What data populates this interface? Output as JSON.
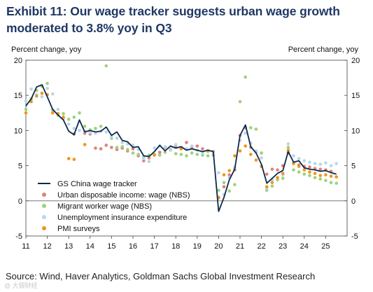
{
  "title_line1": "Exhibit 11: Our wage tracker suggests urban wage growth",
  "title_line2": "moderated to 3.8% yoy in Q3",
  "source": "Source: Wind, Haver Analytics, Goldman Sachs Global Investment Research",
  "watermark": "@ 大银财经",
  "chart_data": {
    "type": "line",
    "ylabel_left": "Percent change, yoy",
    "ylabel_right": "Percent change, yoy",
    "ylim": [
      -5,
      20
    ],
    "yticks": [
      -5,
      0,
      5,
      10,
      15,
      20
    ],
    "xlim": [
      2011.0,
      2026.0
    ],
    "xticks": [
      {
        "label": "11",
        "x": 2011.0
      },
      {
        "label": "12",
        "x": 2012.0
      },
      {
        "label": "13",
        "x": 2013.0
      },
      {
        "label": "14",
        "x": 2014.0
      },
      {
        "label": "15",
        "x": 2015.0
      },
      {
        "label": "16",
        "x": 2016.0
      },
      {
        "label": "17",
        "x": 2017.0
      },
      {
        "label": "18",
        "x": 2018.0
      },
      {
        "label": "19",
        "x": 2019.0
      },
      {
        "label": "20",
        "x": 2020.0
      },
      {
        "label": "21",
        "x": 2021.0
      },
      {
        "label": "22",
        "x": 2022.0
      },
      {
        "label": "23",
        "x": 2023.0
      },
      {
        "label": "24",
        "x": 2024.0
      },
      {
        "label": "25",
        "x": 2025.0
      }
    ],
    "grid": false,
    "legend_position": "bottom-left",
    "series": [
      {
        "name": "GS China wage tracker",
        "kind": "line",
        "color": "#0b2a4a",
        "points": [
          [
            2011.0,
            13.5
          ],
          [
            2011.25,
            14.5
          ],
          [
            2011.5,
            16.2
          ],
          [
            2011.75,
            16.5
          ],
          [
            2012.0,
            14.8
          ],
          [
            2012.25,
            13.0
          ],
          [
            2012.5,
            12.2
          ],
          [
            2012.75,
            11.5
          ],
          [
            2013.0,
            9.9
          ],
          [
            2013.25,
            9.4
          ],
          [
            2013.5,
            11.5
          ],
          [
            2013.75,
            9.8
          ],
          [
            2014.0,
            10.0
          ],
          [
            2014.25,
            9.8
          ],
          [
            2014.5,
            9.9
          ],
          [
            2014.75,
            10.5
          ],
          [
            2015.0,
            9.3
          ],
          [
            2015.25,
            9.8
          ],
          [
            2015.5,
            8.6
          ],
          [
            2015.75,
            8.4
          ],
          [
            2016.0,
            7.6
          ],
          [
            2016.25,
            7.7
          ],
          [
            2016.5,
            6.4
          ],
          [
            2016.75,
            6.3
          ],
          [
            2017.0,
            7.0
          ],
          [
            2017.25,
            7.9
          ],
          [
            2017.5,
            7.1
          ],
          [
            2017.75,
            7.8
          ],
          [
            2018.0,
            7.5
          ],
          [
            2018.25,
            7.7
          ],
          [
            2018.5,
            7.2
          ],
          [
            2018.75,
            7.4
          ],
          [
            2019.0,
            7.2
          ],
          [
            2019.25,
            7.0
          ],
          [
            2019.5,
            7.2
          ],
          [
            2019.75,
            7.0
          ],
          [
            2020.0,
            -1.5
          ],
          [
            2020.25,
            0.5
          ],
          [
            2020.5,
            3.0
          ],
          [
            2020.75,
            4.5
          ],
          [
            2021.0,
            9.3
          ],
          [
            2021.25,
            10.8
          ],
          [
            2021.5,
            7.7
          ],
          [
            2021.75,
            6.8
          ],
          [
            2022.0,
            5.2
          ],
          [
            2022.25,
            2.5
          ],
          [
            2022.5,
            3.2
          ],
          [
            2022.75,
            3.9
          ],
          [
            2023.0,
            4.3
          ],
          [
            2023.25,
            7.0
          ],
          [
            2023.5,
            5.5
          ],
          [
            2023.75,
            5.7
          ],
          [
            2024.0,
            4.7
          ],
          [
            2024.25,
            4.5
          ],
          [
            2024.5,
            4.4
          ],
          [
            2024.75,
            4.2
          ],
          [
            2025.0,
            4.3
          ],
          [
            2025.25,
            4.0
          ],
          [
            2025.5,
            3.8
          ]
        ]
      },
      {
        "name": "Urban disposable income: wage (NBS)",
        "kind": "scatter",
        "color": "#d9837c",
        "points": [
          [
            2013.25,
            9.5
          ],
          [
            2013.75,
            9.6
          ],
          [
            2014.0,
            9.5
          ],
          [
            2014.25,
            7.5
          ],
          [
            2014.5,
            7.4
          ],
          [
            2014.75,
            7.9
          ],
          [
            2015.0,
            7.6
          ],
          [
            2015.25,
            7.3
          ],
          [
            2015.5,
            7.5
          ],
          [
            2015.75,
            7.1
          ],
          [
            2016.0,
            7.4
          ],
          [
            2016.25,
            6.4
          ],
          [
            2016.5,
            5.7
          ],
          [
            2016.75,
            6.1
          ],
          [
            2017.0,
            6.6
          ],
          [
            2017.25,
            6.9
          ],
          [
            2017.5,
            7.6
          ],
          [
            2017.75,
            7.3
          ],
          [
            2018.0,
            7.7
          ],
          [
            2018.25,
            7.4
          ],
          [
            2018.5,
            8.3
          ],
          [
            2018.75,
            7.6
          ],
          [
            2019.0,
            7.8
          ],
          [
            2019.25,
            7.4
          ],
          [
            2019.5,
            7.1
          ],
          [
            2019.75,
            7.0
          ],
          [
            2020.0,
            0.5
          ],
          [
            2020.25,
            2.0
          ],
          [
            2020.5,
            3.7
          ],
          [
            2020.75,
            4.4
          ],
          [
            2021.0,
            9.3
          ],
          [
            2021.25,
            10.4
          ],
          [
            2021.5,
            7.6
          ],
          [
            2021.75,
            7.0
          ],
          [
            2022.0,
            6.8
          ],
          [
            2022.25,
            3.8
          ],
          [
            2022.5,
            4.5
          ],
          [
            2022.75,
            4.4
          ],
          [
            2023.0,
            5.0
          ],
          [
            2023.25,
            6.8
          ],
          [
            2023.5,
            5.4
          ],
          [
            2023.75,
            5.1
          ],
          [
            2024.0,
            4.9
          ],
          [
            2024.25,
            4.8
          ],
          [
            2024.5,
            4.6
          ],
          [
            2024.75,
            4.5
          ],
          [
            2025.0,
            4.4
          ],
          [
            2025.25,
            4.2
          ]
        ]
      },
      {
        "name": "Migrant worker wage (NBS)",
        "kind": "scatter",
        "color": "#9ed27c",
        "points": [
          [
            2011.0,
            13.0
          ],
          [
            2011.25,
            14.5
          ],
          [
            2011.5,
            15.7
          ],
          [
            2011.75,
            16.3
          ],
          [
            2012.0,
            16.7
          ],
          [
            2012.25,
            12.9
          ],
          [
            2012.5,
            12.2
          ],
          [
            2012.75,
            12.4
          ],
          [
            2013.0,
            11.6
          ],
          [
            2013.25,
            11.9
          ],
          [
            2013.5,
            12.5
          ],
          [
            2013.75,
            10.6
          ],
          [
            2014.0,
            10.1
          ],
          [
            2014.25,
            10.3
          ],
          [
            2014.5,
            10.6
          ],
          [
            2014.75,
            19.2
          ],
          [
            2015.0,
            8.9
          ],
          [
            2015.25,
            7.6
          ],
          [
            2015.5,
            7.7
          ],
          [
            2015.75,
            7.3
          ],
          [
            2016.0,
            6.8
          ],
          [
            2016.25,
            6.6
          ],
          [
            2016.5,
            6.2
          ],
          [
            2016.75,
            6.5
          ],
          [
            2017.0,
            6.6
          ],
          [
            2017.25,
            6.5
          ],
          [
            2017.5,
            6.9
          ],
          [
            2017.75,
            7.2
          ],
          [
            2018.0,
            6.7
          ],
          [
            2018.25,
            6.6
          ],
          [
            2018.5,
            6.4
          ],
          [
            2018.75,
            6.8
          ],
          [
            2019.0,
            6.6
          ],
          [
            2019.25,
            6.5
          ],
          [
            2019.5,
            6.4
          ],
          [
            2019.75,
            6.5
          ],
          [
            2020.0,
            1.5
          ],
          [
            2020.25,
            2.6
          ],
          [
            2020.5,
            1.4
          ],
          [
            2020.75,
            2.3
          ],
          [
            2021.0,
            14.1
          ],
          [
            2021.25,
            17.6
          ],
          [
            2021.5,
            10.4
          ],
          [
            2021.75,
            10.2
          ],
          [
            2022.0,
            6.8
          ],
          [
            2022.25,
            1.5
          ],
          [
            2022.5,
            2.1
          ],
          [
            2022.75,
            3.0
          ],
          [
            2023.0,
            3.2
          ],
          [
            2023.25,
            7.6
          ],
          [
            2023.5,
            4.4
          ],
          [
            2023.75,
            4.1
          ],
          [
            2024.0,
            3.8
          ],
          [
            2024.25,
            3.6
          ],
          [
            2024.5,
            3.3
          ],
          [
            2024.75,
            3.1
          ],
          [
            2025.0,
            2.9
          ],
          [
            2025.25,
            2.6
          ],
          [
            2025.5,
            2.5
          ]
        ]
      },
      {
        "name": "Unemployment insurance expenditure",
        "kind": "scatter",
        "color": "#b9d6ea",
        "points": [
          [
            2011.0,
            14.2
          ],
          [
            2011.25,
            15.9
          ],
          [
            2011.5,
            15.1
          ],
          [
            2011.75,
            14.8
          ],
          [
            2012.0,
            16.0
          ],
          [
            2012.25,
            15.2
          ],
          [
            2012.5,
            13.0
          ],
          [
            2012.75,
            11.7
          ],
          [
            2013.0,
            10.9
          ],
          [
            2013.25,
            10.3
          ],
          [
            2013.5,
            10.0
          ],
          [
            2013.75,
            9.9
          ],
          [
            2014.0,
            9.7
          ],
          [
            2014.25,
            9.6
          ],
          [
            2014.5,
            9.9
          ],
          [
            2014.75,
            9.8
          ],
          [
            2015.0,
            9.1
          ],
          [
            2015.25,
            8.9
          ],
          [
            2015.5,
            8.3
          ],
          [
            2015.75,
            8.1
          ],
          [
            2016.0,
            7.9
          ],
          [
            2016.25,
            7.3
          ],
          [
            2016.5,
            6.0
          ],
          [
            2016.75,
            5.6
          ],
          [
            2017.0,
            7.5
          ],
          [
            2017.25,
            7.8
          ],
          [
            2017.5,
            7.7
          ],
          [
            2017.75,
            7.2
          ],
          [
            2018.0,
            8.0
          ],
          [
            2018.25,
            7.6
          ],
          [
            2018.5,
            7.4
          ],
          [
            2018.75,
            7.8
          ],
          [
            2019.0,
            7.2
          ],
          [
            2019.25,
            6.8
          ],
          [
            2019.5,
            7.0
          ],
          [
            2019.75,
            6.9
          ],
          [
            2020.0,
            4.0
          ],
          [
            2020.25,
            0.9
          ],
          [
            2020.5,
            3.3
          ],
          [
            2020.75,
            4.8
          ],
          [
            2021.0,
            8.6
          ],
          [
            2021.25,
            9.6
          ],
          [
            2021.5,
            8.2
          ],
          [
            2021.75,
            7.1
          ],
          [
            2022.0,
            6.1
          ],
          [
            2022.25,
            1.8
          ],
          [
            2022.5,
            3.0
          ],
          [
            2022.75,
            3.3
          ],
          [
            2023.0,
            3.7
          ],
          [
            2023.25,
            8.1
          ],
          [
            2023.5,
            6.4
          ],
          [
            2023.75,
            6.0
          ],
          [
            2024.0,
            5.7
          ],
          [
            2024.25,
            5.5
          ],
          [
            2024.5,
            5.3
          ],
          [
            2024.75,
            5.2
          ],
          [
            2025.0,
            5.4
          ],
          [
            2025.25,
            5.0
          ],
          [
            2025.5,
            5.3
          ]
        ]
      },
      {
        "name": "PMI surveys",
        "kind": "scatter",
        "color": "#f0961c",
        "points": [
          [
            2011.0,
            12.5
          ],
          [
            2011.25,
            14.1
          ],
          [
            2011.5,
            14.9
          ],
          [
            2011.75,
            15.3
          ],
          [
            2012.0,
            15.1
          ],
          [
            2012.25,
            12.5
          ],
          [
            2012.5,
            12.4
          ],
          [
            2012.75,
            11.9
          ],
          [
            2013.0,
            6.0
          ],
          [
            2013.25,
            5.9
          ],
          [
            2013.75,
            8.0
          ],
          [
            2017.0,
            6.5
          ],
          [
            2018.25,
            7.4
          ],
          [
            2019.5,
            7.1
          ],
          [
            2020.0,
            0.4
          ],
          [
            2020.25,
            3.7
          ],
          [
            2020.5,
            4.3
          ],
          [
            2020.75,
            6.4
          ],
          [
            2021.0,
            7.1
          ],
          [
            2021.25,
            7.8
          ],
          [
            2021.5,
            6.6
          ],
          [
            2021.75,
            5.8
          ],
          [
            2022.0,
            4.9
          ],
          [
            2022.25,
            2.0
          ],
          [
            2022.5,
            2.6
          ],
          [
            2022.75,
            3.3
          ],
          [
            2023.0,
            3.9
          ],
          [
            2023.25,
            7.2
          ],
          [
            2023.5,
            5.3
          ],
          [
            2023.75,
            4.9
          ],
          [
            2024.0,
            4.4
          ],
          [
            2024.25,
            4.1
          ],
          [
            2024.5,
            3.9
          ],
          [
            2024.75,
            3.6
          ],
          [
            2025.0,
            3.7
          ],
          [
            2025.25,
            3.5
          ],
          [
            2025.5,
            3.4
          ]
        ]
      }
    ]
  }
}
